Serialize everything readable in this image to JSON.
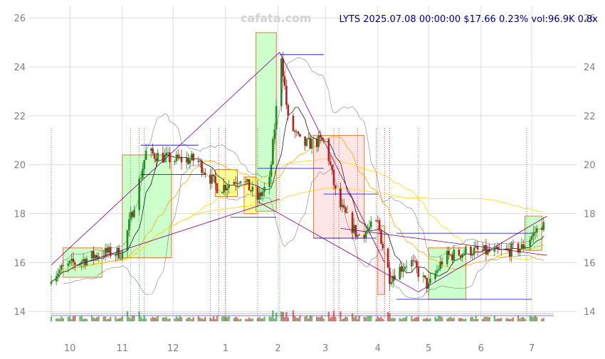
{
  "watermark": "cafata.com",
  "info_line": "LYTS 2025.07.08 00:00:00 $17.66 0.23% vol:96.9K 0.8x",
  "colors": {
    "up": "#228b22",
    "down": "#b22222",
    "grid": "#dcdcdc",
    "ma_short": "#000000",
    "ma_mid": "#ffa500",
    "ma_long": "#ffd700",
    "band": "#808080",
    "trend": "#800080",
    "level": "#0000cd",
    "box_up_fill": "#ccffcc",
    "box_down_fill": "#ffe6e6",
    "box_yellow_fill": "#ffff99",
    "box_stroke": "#e07b39"
  },
  "chart_data": {
    "type": "candlestick",
    "ticker": "LYTS",
    "y_ticks": [
      "14",
      "16",
      "18",
      "20",
      "22",
      "24",
      "26"
    ],
    "x_ticks": [
      "10",
      "11",
      "12",
      "1",
      "2",
      "3",
      "4",
      "5",
      "6",
      "7"
    ],
    "ylim": [
      13.6,
      26.5
    ],
    "x_range": [
      "2024-09-20",
      "2025-07-14"
    ],
    "x_tick_dates": [
      "2024-10-01",
      "2024-11-01",
      "2024-12-01",
      "2025-01-01",
      "2025-02-01",
      "2025-03-01",
      "2025-04-01",
      "2025-05-01",
      "2025-06-01",
      "2025-07-01"
    ],
    "price_anchors": [
      [
        "2024-09-20",
        15.5
      ],
      [
        "2024-10-01",
        15.9
      ],
      [
        "2024-10-20",
        16.4
      ],
      [
        "2024-11-01",
        16.4
      ],
      [
        "2024-11-10",
        19.0
      ],
      [
        "2024-11-15",
        20.5
      ],
      [
        "2024-12-01",
        20.2
      ],
      [
        "2024-12-15",
        20.2
      ],
      [
        "2024-12-28",
        19.0
      ],
      [
        "2025-01-10",
        19.5
      ],
      [
        "2025-01-20",
        18.6
      ],
      [
        "2025-01-27",
        19.3
      ],
      [
        "2025-02-03",
        24.5
      ],
      [
        "2025-02-07",
        21.8
      ],
      [
        "2025-02-15",
        20.8
      ],
      [
        "2025-03-01",
        21.0
      ],
      [
        "2025-03-08",
        18.5
      ],
      [
        "2025-03-20",
        17.1
      ],
      [
        "2025-04-01",
        17.6
      ],
      [
        "2025-04-08",
        15.4
      ],
      [
        "2025-04-20",
        16.1
      ],
      [
        "2025-05-01",
        15.0
      ],
      [
        "2025-05-10",
        16.2
      ],
      [
        "2025-05-25",
        16.5
      ],
      [
        "2025-06-10",
        16.4
      ],
      [
        "2025-06-25",
        16.6
      ],
      [
        "2025-07-08",
        17.66
      ]
    ],
    "boxes": [
      {
        "start": "2024-09-27",
        "end": "2024-10-20",
        "low": 15.4,
        "high": 16.6,
        "kind": "up"
      },
      {
        "start": "2024-11-01",
        "end": "2024-11-30",
        "low": 16.2,
        "high": 20.4,
        "kind": "up"
      },
      {
        "start": "2024-12-26",
        "end": "2025-01-08",
        "low": 18.7,
        "high": 19.8,
        "kind": "yellow"
      },
      {
        "start": "2025-01-12",
        "end": "2025-01-20",
        "low": 18.0,
        "high": 19.5,
        "kind": "yellow"
      },
      {
        "start": "2025-01-19",
        "end": "2025-01-31",
        "low": 18.1,
        "high": 25.4,
        "kind": "up"
      },
      {
        "start": "2025-02-22",
        "end": "2025-03-24",
        "low": 17.0,
        "high": 21.2,
        "kind": "down"
      },
      {
        "start": "2025-04-01",
        "end": "2025-04-05",
        "low": 14.7,
        "high": 17.5,
        "kind": "down"
      },
      {
        "start": "2025-05-01",
        "end": "2025-05-23",
        "low": 14.5,
        "high": 16.6,
        "kind": "up"
      },
      {
        "start": "2025-06-27",
        "end": "2025-07-07",
        "low": 16.5,
        "high": 17.9,
        "kind": "up"
      }
    ],
    "trend_lines": [
      {
        "from": [
          "2024-09-20",
          15.9
        ],
        "to": [
          "2025-02-02",
          24.6
        ]
      },
      {
        "from": [
          "2025-02-02",
          24.6
        ],
        "to": [
          "2025-04-05",
          16.0
        ]
      },
      {
        "from": [
          "2024-10-05",
          15.9
        ],
        "to": [
          "2025-02-02",
          18.6
        ]
      },
      {
        "from": [
          "2025-01-20",
          18.5
        ],
        "to": [
          "2025-04-25",
          14.8
        ]
      },
      {
        "from": [
          "2025-04-25",
          14.8
        ],
        "to": [
          "2025-07-10",
          17.9
        ]
      },
      {
        "from": [
          "2025-03-10",
          17.4
        ],
        "to": [
          "2025-07-10",
          16.3
        ]
      }
    ],
    "level_lines": [
      {
        "start": "2024-11-12",
        "end": "2024-12-16",
        "y": 20.8
      },
      {
        "start": "2024-11-12",
        "end": "2024-12-20",
        "y": 19.6
      },
      {
        "start": "2025-01-04",
        "end": "2025-01-31",
        "y": 17.85
      },
      {
        "start": "2025-02-02",
        "end": "2025-02-28",
        "y": 24.5
      },
      {
        "start": "2025-01-20",
        "end": "2025-02-28",
        "y": 19.85
      },
      {
        "start": "2025-02-28",
        "end": "2025-04-01",
        "y": 18.8
      },
      {
        "start": "2025-02-22",
        "end": "2025-03-31",
        "y": 17.0
      },
      {
        "start": "2025-04-12",
        "end": "2025-07-01",
        "y": 17.2
      },
      {
        "start": "2025-04-12",
        "end": "2025-07-01",
        "y": 14.5
      }
    ],
    "signal_lines": [
      {
        "date": "2024-09-20",
        "kind": "up"
      },
      {
        "date": "2024-11-06",
        "kind": "up"
      },
      {
        "date": "2024-11-11",
        "kind": "up"
      },
      {
        "date": "2024-11-14",
        "kind": "up"
      },
      {
        "date": "2024-12-23",
        "kind": "up"
      },
      {
        "date": "2024-12-28",
        "kind": "down"
      },
      {
        "date": "2025-01-01",
        "kind": "down"
      },
      {
        "date": "2025-01-20",
        "kind": "up"
      },
      {
        "date": "2025-02-02",
        "kind": "up"
      },
      {
        "date": "2025-03-06",
        "kind": "down"
      },
      {
        "date": "2025-03-09",
        "kind": "down"
      },
      {
        "date": "2025-03-20",
        "kind": "down"
      },
      {
        "date": "2025-03-31",
        "kind": "down"
      },
      {
        "date": "2025-04-05",
        "kind": "down"
      },
      {
        "date": "2025-04-08",
        "kind": "down"
      },
      {
        "date": "2025-04-25",
        "kind": "up"
      },
      {
        "date": "2025-06-28",
        "kind": "up"
      }
    ],
    "grid": true,
    "y_axis_sides": [
      "left",
      "right"
    ]
  }
}
